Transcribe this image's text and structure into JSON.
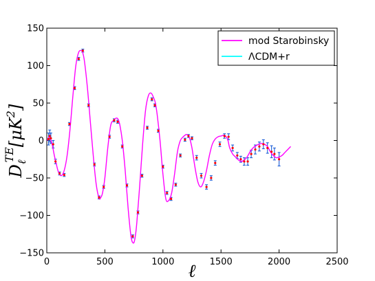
{
  "chart_data": {
    "type": "line",
    "xlabel": "ℓ",
    "ylabel": "D_ℓ^{TE}[μK²]",
    "ylabel_parts": {
      "base": "D",
      "sub": "ℓ",
      "sup": "TE",
      "unit": "[μK",
      "unit_exp": "2",
      "unit_close": "]"
    },
    "xlim": [
      0,
      2500
    ],
    "ylim": [
      -150,
      150
    ],
    "xticks": [
      0,
      500,
      1000,
      1500,
      2000,
      2500
    ],
    "yticks": [
      -150,
      -100,
      -50,
      0,
      50,
      100,
      150
    ],
    "xtick_labels": [
      "0",
      "500",
      "1000",
      "1500",
      "2000",
      "2500"
    ],
    "ytick_labels": [
      "−150",
      "−100",
      "−50",
      "0",
      "50",
      "100",
      "150"
    ],
    "grid": false,
    "legend_position": "top-right",
    "series": [
      {
        "name": "mod Starobinsky",
        "color": "#ff00ff",
        "x": [
          2,
          10,
          20,
          35,
          50,
          65,
          80,
          100,
          125,
          150,
          175,
          200,
          225,
          250,
          275,
          300,
          310,
          325,
          350,
          375,
          400,
          425,
          450,
          465,
          480,
          500,
          525,
          550,
          575,
          600,
          615,
          630,
          650,
          675,
          700,
          725,
          745,
          760,
          775,
          800,
          825,
          850,
          875,
          900,
          925,
          935,
          950,
          975,
          1000,
          1025,
          1050,
          1075,
          1100,
          1125,
          1150,
          1175,
          1200,
          1215,
          1230,
          1250,
          1275,
          1300,
          1325,
          1350,
          1375,
          1400,
          1425,
          1450,
          1475,
          1500,
          1525,
          1545,
          1560,
          1575,
          1600,
          1625,
          1650,
          1675,
          1700,
          1725,
          1750,
          1775,
          1800,
          1825,
          1850,
          1875,
          1900,
          1925,
          1950,
          1975,
          2000,
          2025,
          2050,
          2075,
          2100
        ],
        "y": [
          0,
          2,
          5,
          1,
          -8,
          -20,
          -30,
          -42,
          -47,
          -40,
          -20,
          15,
          60,
          100,
          118,
          120,
          117,
          105,
          70,
          25,
          -20,
          -58,
          -77,
          -76,
          -70,
          -50,
          -10,
          20,
          27,
          30,
          28,
          20,
          0,
          -40,
          -90,
          -128,
          -137,
          -130,
          -110,
          -60,
          -5,
          40,
          60,
          63,
          55,
          50,
          35,
          0,
          -45,
          -78,
          -80,
          -70,
          -45,
          -15,
          0,
          5,
          8,
          7,
          3,
          -10,
          -35,
          -55,
          -62,
          -55,
          -40,
          -20,
          -5,
          2,
          5,
          6,
          7,
          5,
          0,
          -10,
          -18,
          -22,
          -26,
          -28,
          -26,
          -22,
          -15,
          -10,
          -7,
          -5,
          -4,
          -5,
          -8,
          -15,
          -20,
          -23,
          -22,
          -20,
          -16,
          -12,
          -8
        ]
      },
      {
        "name": "ΛCDM+r",
        "color": "#00ffff"
      }
    ],
    "error_points": {
      "marker_color": "#ff0000",
      "error_color": "#1a5cd6",
      "x": [
        15,
        25,
        35,
        55,
        75,
        110,
        150,
        195,
        240,
        275,
        310,
        360,
        410,
        450,
        490,
        540,
        580,
        610,
        650,
        690,
        740,
        785,
        820,
        865,
        905,
        930,
        960,
        1000,
        1035,
        1070,
        1110,
        1150,
        1190,
        1220,
        1250,
        1290,
        1330,
        1375,
        1415,
        1450,
        1490,
        1530,
        1565,
        1600,
        1640,
        1670,
        1700,
        1730,
        1760,
        1795,
        1830,
        1865,
        1900,
        1935,
        1960,
        2000
      ],
      "y": [
        2,
        6,
        3,
        -5,
        -28,
        -44,
        -46,
        22,
        70,
        109,
        120,
        47,
        -32,
        -76,
        -62,
        5,
        27,
        25,
        -8,
        -60,
        -128,
        -96,
        -47,
        17,
        55,
        47,
        13,
        -35,
        -70,
        -78,
        -59,
        -20,
        1,
        6,
        3,
        -23,
        -47,
        -62,
        -50,
        -30,
        -5,
        6,
        5,
        -10,
        -20,
        -25,
        -28,
        -28,
        -18,
        -12,
        -8,
        -5,
        -10,
        -15,
        -18,
        -25
      ],
      "err": [
        8,
        8,
        7,
        5,
        3,
        2,
        2,
        2,
        2,
        2,
        2,
        2,
        2,
        2,
        2,
        2,
        2,
        2,
        2,
        2,
        2,
        2,
        2,
        2,
        2,
        2,
        2,
        2,
        2,
        2,
        2,
        2,
        2,
        2,
        2,
        3,
        3,
        3,
        3,
        3,
        3,
        3,
        4,
        4,
        4,
        4,
        5,
        5,
        5,
        6,
        6,
        6,
        7,
        8,
        8,
        9
      ]
    }
  }
}
